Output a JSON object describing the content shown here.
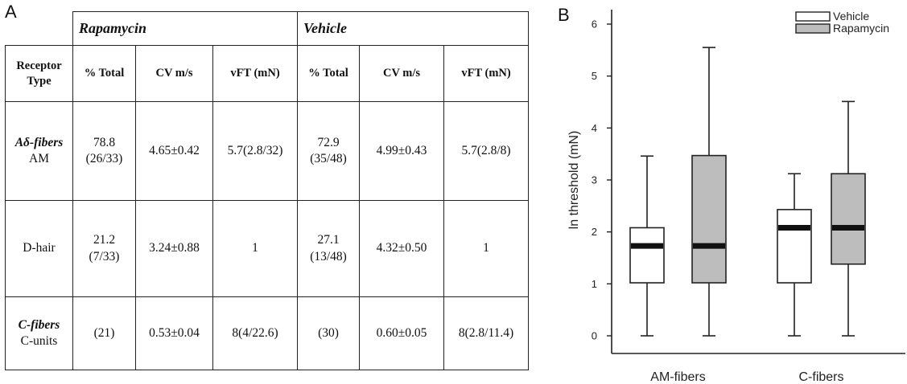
{
  "panel_a": {
    "letter": "A",
    "groups": [
      "Rapamycin",
      "Vehicle"
    ],
    "header": {
      "receptor_type": "Receptor Type",
      "columns": [
        "% Total",
        "CV m/s",
        "vFT (mN)",
        "% Total",
        "CV m/s",
        "vFT (mN)"
      ]
    },
    "rows": [
      {
        "type_italic": "Aδ-fibers",
        "type_sub": "AM",
        "rap_total": "78.8",
        "rap_total_sub": "(26/33)",
        "rap_cv": "4.65±0.42",
        "rap_vft": "5.7(2.8/32)",
        "veh_total": "72.9",
        "veh_total_sub": "(35/48)",
        "veh_cv": "4.99±0.43",
        "veh_vft": "5.7(2.8/8)"
      },
      {
        "type_italic": "",
        "type_sub": "D-hair",
        "rap_total": "21.2",
        "rap_total_sub": "(7/33)",
        "rap_cv": "3.24±0.88",
        "rap_vft": "1",
        "veh_total": "27.1",
        "veh_total_sub": "(13/48)",
        "veh_cv": "4.32±0.50",
        "veh_vft": "1"
      },
      {
        "type_italic": "C-fibers",
        "type_sub": "C-units",
        "rap_total": "(21)",
        "rap_total_sub": "",
        "rap_cv": "0.53±0.04",
        "rap_vft": "8(4/22.6)",
        "veh_total": "(30)",
        "veh_total_sub": "",
        "veh_cv": "0.60±0.05",
        "veh_vft": "8(2.8/11.4)"
      }
    ]
  },
  "panel_b": {
    "letter": "B"
  },
  "chart_data": {
    "type": "box",
    "ylabel": "ln threshold (mN)",
    "xlabel": "",
    "ylim": [
      0,
      6
    ],
    "yticks": [
      0,
      1,
      2,
      3,
      4,
      5,
      6
    ],
    "categories": [
      "AM-fibers",
      "C-fibers"
    ],
    "legend_placement": "top-right",
    "grid": false,
    "series": [
      {
        "name": "Vehicle",
        "color": "#ffffff",
        "boxes": [
          {
            "min": 0,
            "q1": 1.02,
            "median": 1.73,
            "q3": 2.08,
            "max": 3.46
          },
          {
            "min": 0,
            "q1": 1.02,
            "median": 2.08,
            "q3": 2.43,
            "max": 3.12
          }
        ]
      },
      {
        "name": "Rapamycin",
        "color": "#bdbdbd",
        "boxes": [
          {
            "min": 0,
            "q1": 1.02,
            "median": 1.73,
            "q3": 3.47,
            "max": 5.55
          },
          {
            "min": 0,
            "q1": 1.38,
            "median": 2.08,
            "q3": 3.12,
            "max": 4.51
          }
        ]
      }
    ]
  }
}
